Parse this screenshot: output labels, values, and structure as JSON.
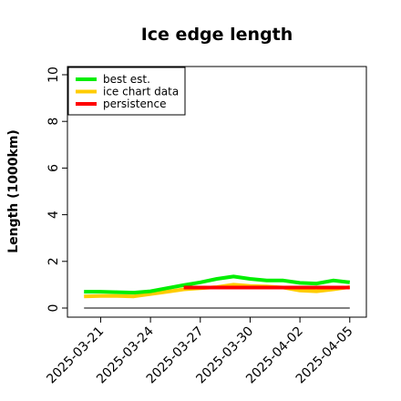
{
  "chart_data": {
    "type": "line",
    "title": "Ice edge length",
    "ylabel": "Length (1000km)",
    "xlabel": "",
    "ylim": [
      0,
      10
    ],
    "yticks": [
      0,
      2,
      4,
      6,
      8,
      10
    ],
    "xlim": [
      "2025-03-19",
      "2025-04-06"
    ],
    "xticks": [
      "2025-03-21",
      "2025-03-24",
      "2025-03-27",
      "2025-03-30",
      "2025-04-02",
      "2025-04-05"
    ],
    "legend_position": "top-left",
    "series": [
      {
        "name": "best est.",
        "color": "#00ee00",
        "points": [
          [
            "2025-03-20",
            0.7
          ],
          [
            "2025-03-21",
            0.7
          ],
          [
            "2025-03-22",
            0.68
          ],
          [
            "2025-03-23",
            0.66
          ],
          [
            "2025-03-24",
            0.72
          ],
          [
            "2025-03-25",
            0.85
          ],
          [
            "2025-03-26",
            0.98
          ],
          [
            "2025-03-27",
            1.1
          ],
          [
            "2025-03-28",
            1.25
          ],
          [
            "2025-03-29",
            1.35
          ],
          [
            "2025-03-30",
            1.25
          ],
          [
            "2025-03-31",
            1.18
          ],
          [
            "2025-04-01",
            1.18
          ],
          [
            "2025-04-02",
            1.08
          ],
          [
            "2025-04-03",
            1.05
          ],
          [
            "2025-04-04",
            1.18
          ],
          [
            "2025-04-05",
            1.1
          ]
        ]
      },
      {
        "name": "ice chart data",
        "color": "#ffcc00",
        "points": [
          [
            "2025-03-20",
            0.5
          ],
          [
            "2025-03-21",
            0.52
          ],
          [
            "2025-03-22",
            0.52
          ],
          [
            "2025-03-23",
            0.5
          ],
          [
            "2025-03-24",
            0.6
          ],
          [
            "2025-03-25",
            0.7
          ],
          [
            "2025-03-26",
            0.8
          ],
          [
            "2025-03-27",
            0.85
          ],
          [
            "2025-03-28",
            0.9
          ],
          [
            "2025-03-29",
            1.0
          ],
          [
            "2025-03-30",
            0.95
          ],
          [
            "2025-03-31",
            0.92
          ],
          [
            "2025-04-01",
            0.88
          ],
          [
            "2025-04-02",
            0.75
          ],
          [
            "2025-04-03",
            0.72
          ],
          [
            "2025-04-04",
            0.8
          ],
          [
            "2025-04-05",
            0.9
          ]
        ]
      },
      {
        "name": "persistence",
        "color": "#ff0000",
        "points": [
          [
            "2025-03-26",
            0.88
          ],
          [
            "2025-04-05",
            0.88
          ]
        ]
      }
    ],
    "reference_line": {
      "y": 0,
      "color": "#000000"
    }
  }
}
